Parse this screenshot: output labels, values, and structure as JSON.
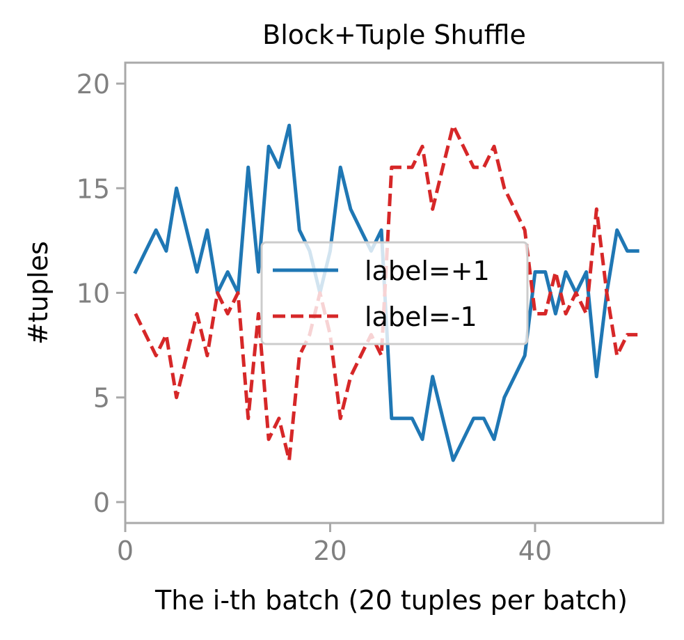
{
  "chart_data": {
    "type": "line",
    "title": "Block+Tuple Shuffle",
    "xlabel": "The i-th batch (20 tuples per batch)",
    "ylabel": "#tuples",
    "xlim": [
      0,
      52.5
    ],
    "ylim": [
      -1,
      21
    ],
    "xticks": [
      0,
      20,
      40
    ],
    "yticks": [
      0,
      5,
      10,
      15,
      20
    ],
    "grid": false,
    "legend_position": "center",
    "x": [
      1,
      2,
      3,
      4,
      5,
      6,
      7,
      8,
      9,
      10,
      11,
      12,
      13,
      14,
      15,
      16,
      17,
      18,
      19,
      20,
      21,
      22,
      23,
      24,
      25,
      26,
      27,
      28,
      29,
      30,
      31,
      32,
      33,
      34,
      35,
      36,
      37,
      38,
      39,
      40,
      41,
      42,
      43,
      44,
      45,
      46,
      47,
      48,
      49,
      50
    ],
    "series": [
      {
        "name": "label=+1",
        "color": "#1f77b4",
        "dash": "solid",
        "values": [
          11,
          12,
          13,
          12,
          15,
          13,
          11,
          13,
          10,
          11,
          10,
          16,
          11,
          17,
          16,
          18,
          13,
          12,
          10,
          12,
          16,
          14,
          13,
          12,
          13,
          4,
          4,
          4,
          3,
          6,
          4,
          2,
          3,
          4,
          4,
          3,
          5,
          6,
          7,
          11,
          11,
          9,
          11,
          10,
          11,
          6,
          10,
          13,
          12,
          12
        ]
      },
      {
        "name": "label=-1",
        "color": "#d62728",
        "dash": "dashed",
        "values": [
          9,
          8,
          7,
          8,
          5,
          7,
          9,
          7,
          10,
          9,
          10,
          4,
          9,
          3,
          4,
          2,
          7,
          8,
          10,
          8,
          4,
          6,
          7,
          8,
          7,
          16,
          16,
          16,
          17,
          14,
          16,
          18,
          17,
          16,
          16,
          17,
          15,
          14,
          13,
          9,
          9,
          11,
          9,
          10,
          9,
          14,
          10,
          7,
          8,
          8
        ]
      }
    ]
  }
}
